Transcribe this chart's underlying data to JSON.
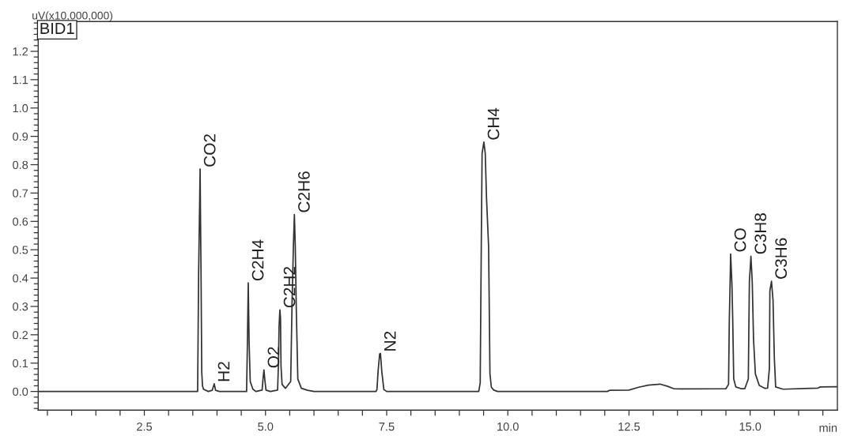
{
  "chart_data": {
    "type": "line",
    "xlabel": "min",
    "ylabel": "uV(x10,000,000)",
    "annotations": [
      "BID1",
      {
        "text": "CO2",
        "x": 3.651,
        "y": 0.785
      },
      {
        "text": "H2",
        "x": 3.942,
        "y": 0.027
      },
      {
        "text": "C2H4",
        "x": 4.644,
        "y": 0.383
      },
      {
        "text": "O2",
        "x": 4.968,
        "y": 0.076
      },
      {
        "text": "C2H2",
        "x": 5.297,
        "y": 0.288
      },
      {
        "text": "C2H6",
        "x": 5.596,
        "y": 0.624
      },
      {
        "text": "N2",
        "x": 7.372,
        "y": 0.134
      },
      {
        "text": "CH4",
        "x": 9.506,
        "y": 0.88
      },
      {
        "text": "CO",
        "x": 14.597,
        "y": 0.485
      },
      {
        "text": "C3H8",
        "x": 15.016,
        "y": 0.477
      },
      {
        "text": "C3H6",
        "x": 15.44,
        "y": 0.389
      }
    ],
    "x": [
      0.31,
      3.6,
      3.62,
      3.636,
      3.651,
      3.66,
      3.67,
      3.685,
      3.7,
      3.72,
      3.82,
      3.9,
      3.942,
      3.97,
      4.05,
      4.61,
      4.627,
      4.644,
      4.662,
      4.685,
      4.74,
      4.8,
      4.93,
      4.95,
      4.968,
      4.987,
      5.01,
      5.1,
      5.25,
      5.266,
      5.28,
      5.297,
      5.31,
      5.32,
      5.342,
      5.41,
      5.52,
      5.548,
      5.575,
      5.596,
      5.615,
      5.635,
      5.667,
      5.74,
      5.87,
      6.0,
      7.28,
      7.3,
      7.323,
      7.355,
      7.372,
      7.399,
      7.442,
      7.5,
      9.4,
      9.43,
      9.453,
      9.469,
      9.506,
      9.534,
      9.56,
      9.604,
      9.631,
      9.66,
      9.71,
      9.79,
      12.05,
      12.1,
      12.5,
      12.7,
      12.9,
      13.14,
      13.3,
      13.42,
      13.58,
      14.5,
      14.554,
      14.57,
      14.586,
      14.597,
      14.624,
      14.64,
      14.661,
      14.704,
      14.81,
      14.89,
      14.962,
      14.984,
      15.016,
      15.043,
      15.07,
      15.108,
      15.188,
      15.306,
      15.36,
      15.397,
      15.407,
      15.44,
      15.472,
      15.499,
      15.526,
      15.68,
      16.26,
      16.4,
      16.45,
      16.8
    ],
    "series": [
      {
        "color": "#333333",
        "values": [
          0.0,
          0.0,
          0.415,
          0.601,
          0.785,
          0.601,
          0.415,
          0.067,
          0.02,
          0.008,
          0.0,
          0.004,
          0.027,
          0.004,
          0.0,
          0.0,
          0.174,
          0.383,
          0.174,
          0.035,
          0.008,
          0.0,
          0.005,
          0.046,
          0.076,
          0.04,
          0.005,
          0.0,
          0.005,
          0.09,
          0.23,
          0.288,
          0.257,
          0.09,
          0.025,
          0.011,
          0.035,
          0.313,
          0.508,
          0.624,
          0.508,
          0.295,
          0.044,
          0.011,
          0.004,
          0.0,
          0.0,
          0.007,
          0.071,
          0.132,
          0.134,
          0.071,
          0.007,
          0.0,
          0.0,
          0.03,
          0.527,
          0.84,
          0.88,
          0.84,
          0.684,
          0.508,
          0.063,
          0.015,
          0.005,
          0.0,
          0.0,
          0.004,
          0.005,
          0.015,
          0.022,
          0.026,
          0.018,
          0.01,
          0.009,
          0.01,
          0.025,
          0.253,
          0.378,
          0.485,
          0.378,
          0.257,
          0.044,
          0.016,
          0.01,
          0.01,
          0.044,
          0.387,
          0.477,
          0.387,
          0.183,
          0.062,
          0.021,
          0.011,
          0.012,
          0.081,
          0.355,
          0.389,
          0.322,
          0.118,
          0.016,
          0.008,
          0.011,
          0.012,
          0.016,
          0.017
        ]
      }
    ],
    "line_style": "solid",
    "xlim": [
      0.31,
      16.8
    ],
    "ylim": [
      -0.066,
      1.305
    ],
    "xticks": [
      {
        "value": 0.5,
        "label": null
      },
      {
        "value": 1,
        "label": null
      },
      {
        "value": 1.5,
        "label": null
      },
      {
        "value": 2,
        "label": null
      },
      2.5,
      {
        "value": 3,
        "label": null
      },
      {
        "value": 3.5,
        "label": null
      },
      {
        "value": 4,
        "label": null
      },
      {
        "value": 4.5,
        "label": null
      },
      {
        "value": 5,
        "label": "5.0"
      },
      {
        "value": 5.5,
        "label": null
      },
      {
        "value": 6,
        "label": null
      },
      {
        "value": 6.5,
        "label": null
      },
      {
        "value": 7,
        "label": null
      },
      7.5,
      {
        "value": 8,
        "label": null
      },
      {
        "value": 8.5,
        "label": null
      },
      {
        "value": 9,
        "label": null
      },
      {
        "value": 9.5,
        "label": null
      },
      {
        "value": 10,
        "label": "10.0"
      },
      {
        "value": 10.5,
        "label": null
      },
      {
        "value": 11,
        "label": null
      },
      {
        "value": 11.5,
        "label": null
      },
      {
        "value": 12,
        "label": null
      },
      12.5,
      {
        "value": 13,
        "label": null
      },
      {
        "value": 13.5,
        "label": null
      },
      {
        "value": 14,
        "label": null
      },
      {
        "value": 14.5,
        "label": null
      },
      {
        "value": 15,
        "label": "15.0"
      },
      {
        "value": 15.5,
        "label": null
      },
      {
        "value": 16,
        "label": null
      },
      {
        "value": 16.5,
        "label": null
      }
    ],
    "yticks": [
      {
        "value": -0.06,
        "label": null
      },
      {
        "value": -0.04,
        "label": null
      },
      {
        "value": -0.02,
        "label": null
      },
      {
        "value": 0,
        "label": "0.0"
      },
      {
        "value": 0.02,
        "label": null
      },
      {
        "value": 0.04,
        "label": null
      },
      {
        "value": 0.06,
        "label": null
      },
      {
        "value": 0.08,
        "label": null
      },
      0.1,
      {
        "value": 0.12,
        "label": null
      },
      {
        "value": 0.14,
        "label": null
      },
      {
        "value": 0.16,
        "label": null
      },
      {
        "value": 0.18,
        "label": null
      },
      0.2,
      {
        "value": 0.22,
        "label": null
      },
      {
        "value": 0.24,
        "label": null
      },
      {
        "value": 0.26,
        "label": null
      },
      {
        "value": 0.28,
        "label": null
      },
      0.3,
      {
        "value": 0.32,
        "label": null
      },
      {
        "value": 0.34,
        "label": null
      },
      {
        "value": 0.36,
        "label": null
      },
      {
        "value": 0.38,
        "label": null
      },
      0.4,
      {
        "value": 0.42,
        "label": null
      },
      {
        "value": 0.44,
        "label": null
      },
      {
        "value": 0.46,
        "label": null
      },
      {
        "value": 0.48,
        "label": null
      },
      0.5,
      {
        "value": 0.52,
        "label": null
      },
      {
        "value": 0.54,
        "label": null
      },
      {
        "value": 0.56,
        "label": null
      },
      {
        "value": 0.58,
        "label": null
      },
      0.6,
      {
        "value": 0.62,
        "label": null
      },
      {
        "value": 0.64,
        "label": null
      },
      {
        "value": 0.66,
        "label": null
      },
      {
        "value": 0.68,
        "label": null
      },
      0.7,
      {
        "value": 0.72,
        "label": null
      },
      {
        "value": 0.74,
        "label": null
      },
      {
        "value": 0.76,
        "label": null
      },
      {
        "value": 0.78,
        "label": null
      },
      0.8,
      {
        "value": 0.82,
        "label": null
      },
      {
        "value": 0.84,
        "label": null
      },
      {
        "value": 0.86,
        "label": null
      },
      {
        "value": 0.88,
        "label": null
      },
      0.9,
      {
        "value": 0.92,
        "label": null
      },
      {
        "value": 0.94,
        "label": null
      },
      {
        "value": 0.96,
        "label": null
      },
      {
        "value": 0.98,
        "label": null
      },
      {
        "value": 1,
        "label": "1.0"
      },
      {
        "value": 1.02,
        "label": null
      },
      {
        "value": 1.04,
        "label": null
      },
      {
        "value": 1.06,
        "label": null
      },
      {
        "value": 1.08,
        "label": null
      },
      1.1,
      {
        "value": 1.12,
        "label": null
      },
      {
        "value": 1.14,
        "label": null
      },
      {
        "value": 1.16,
        "label": null
      },
      {
        "value": 1.18,
        "label": null
      },
      1.2,
      {
        "value": 1.22,
        "label": null
      },
      {
        "value": 1.24,
        "label": null
      },
      {
        "value": 1.26,
        "label": null
      },
      {
        "value": 1.28,
        "label": null
      },
      {
        "value": 1.3,
        "label": null
      }
    ]
  }
}
